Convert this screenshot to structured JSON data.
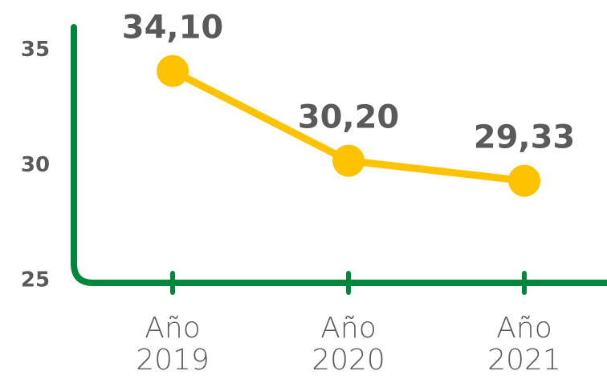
{
  "chart_data": {
    "type": "line",
    "categories": [
      "Año 2019",
      "Año 2020",
      "Año 2021"
    ],
    "values": [
      34.1,
      30.2,
      29.33
    ],
    "value_labels": [
      "34,10",
      "30,20",
      "29,33"
    ],
    "color": "#fdc300",
    "axis_color": "#00873c",
    "ylim": [
      25,
      36
    ],
    "yticks": [
      25,
      30,
      35
    ]
  }
}
